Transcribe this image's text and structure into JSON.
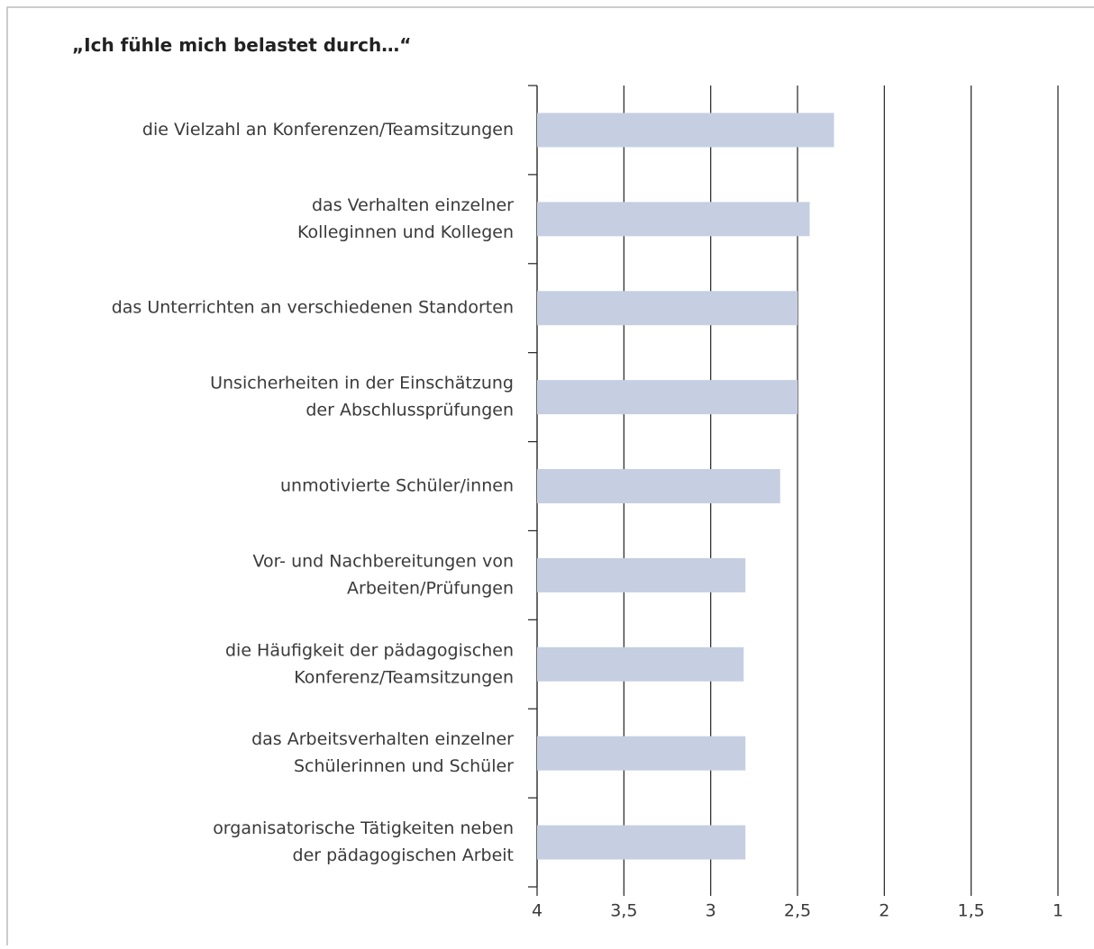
{
  "chart_data": {
    "type": "barh",
    "title": "„Ich fühle mich belastet durch…“",
    "categories": [
      [
        "die Vielzahl an Konferenzen/Teamsitzungen"
      ],
      [
        "das Verhalten einzelner",
        "Kolleginnen und Kollegen"
      ],
      [
        "das Unterrichten an verschiedenen Standorten"
      ],
      [
        "Unsicherheiten in der Einschätzung",
        "der Abschlussprüfungen"
      ],
      [
        "unmotivierte Schüler/innen"
      ],
      [
        "Vor- und Nachbereitungen von",
        "Arbeiten/Prüfungen"
      ],
      [
        "die Häufigkeit der pädagogischen",
        "Konferenz/Teamsitzungen"
      ],
      [
        "das Arbeitsverhalten einzelner",
        "Schülerinnen und Schüler"
      ],
      [
        "organisatorische Tätigkeiten neben",
        "der pädagogischen Arbeit"
      ]
    ],
    "values": [
      2.29,
      2.43,
      2.5,
      2.5,
      2.6,
      2.8,
      2.81,
      2.8,
      2.8
    ],
    "color": "#c5cfe1",
    "xlim": [
      4,
      1
    ],
    "xticks": [
      4,
      {
        "value": 3.5,
        "label": "3,5"
      },
      3,
      {
        "value": 2.5,
        "label": "2,5"
      },
      2,
      {
        "value": 1.5,
        "label": "1,5"
      },
      1
    ],
    "grid": true
  }
}
